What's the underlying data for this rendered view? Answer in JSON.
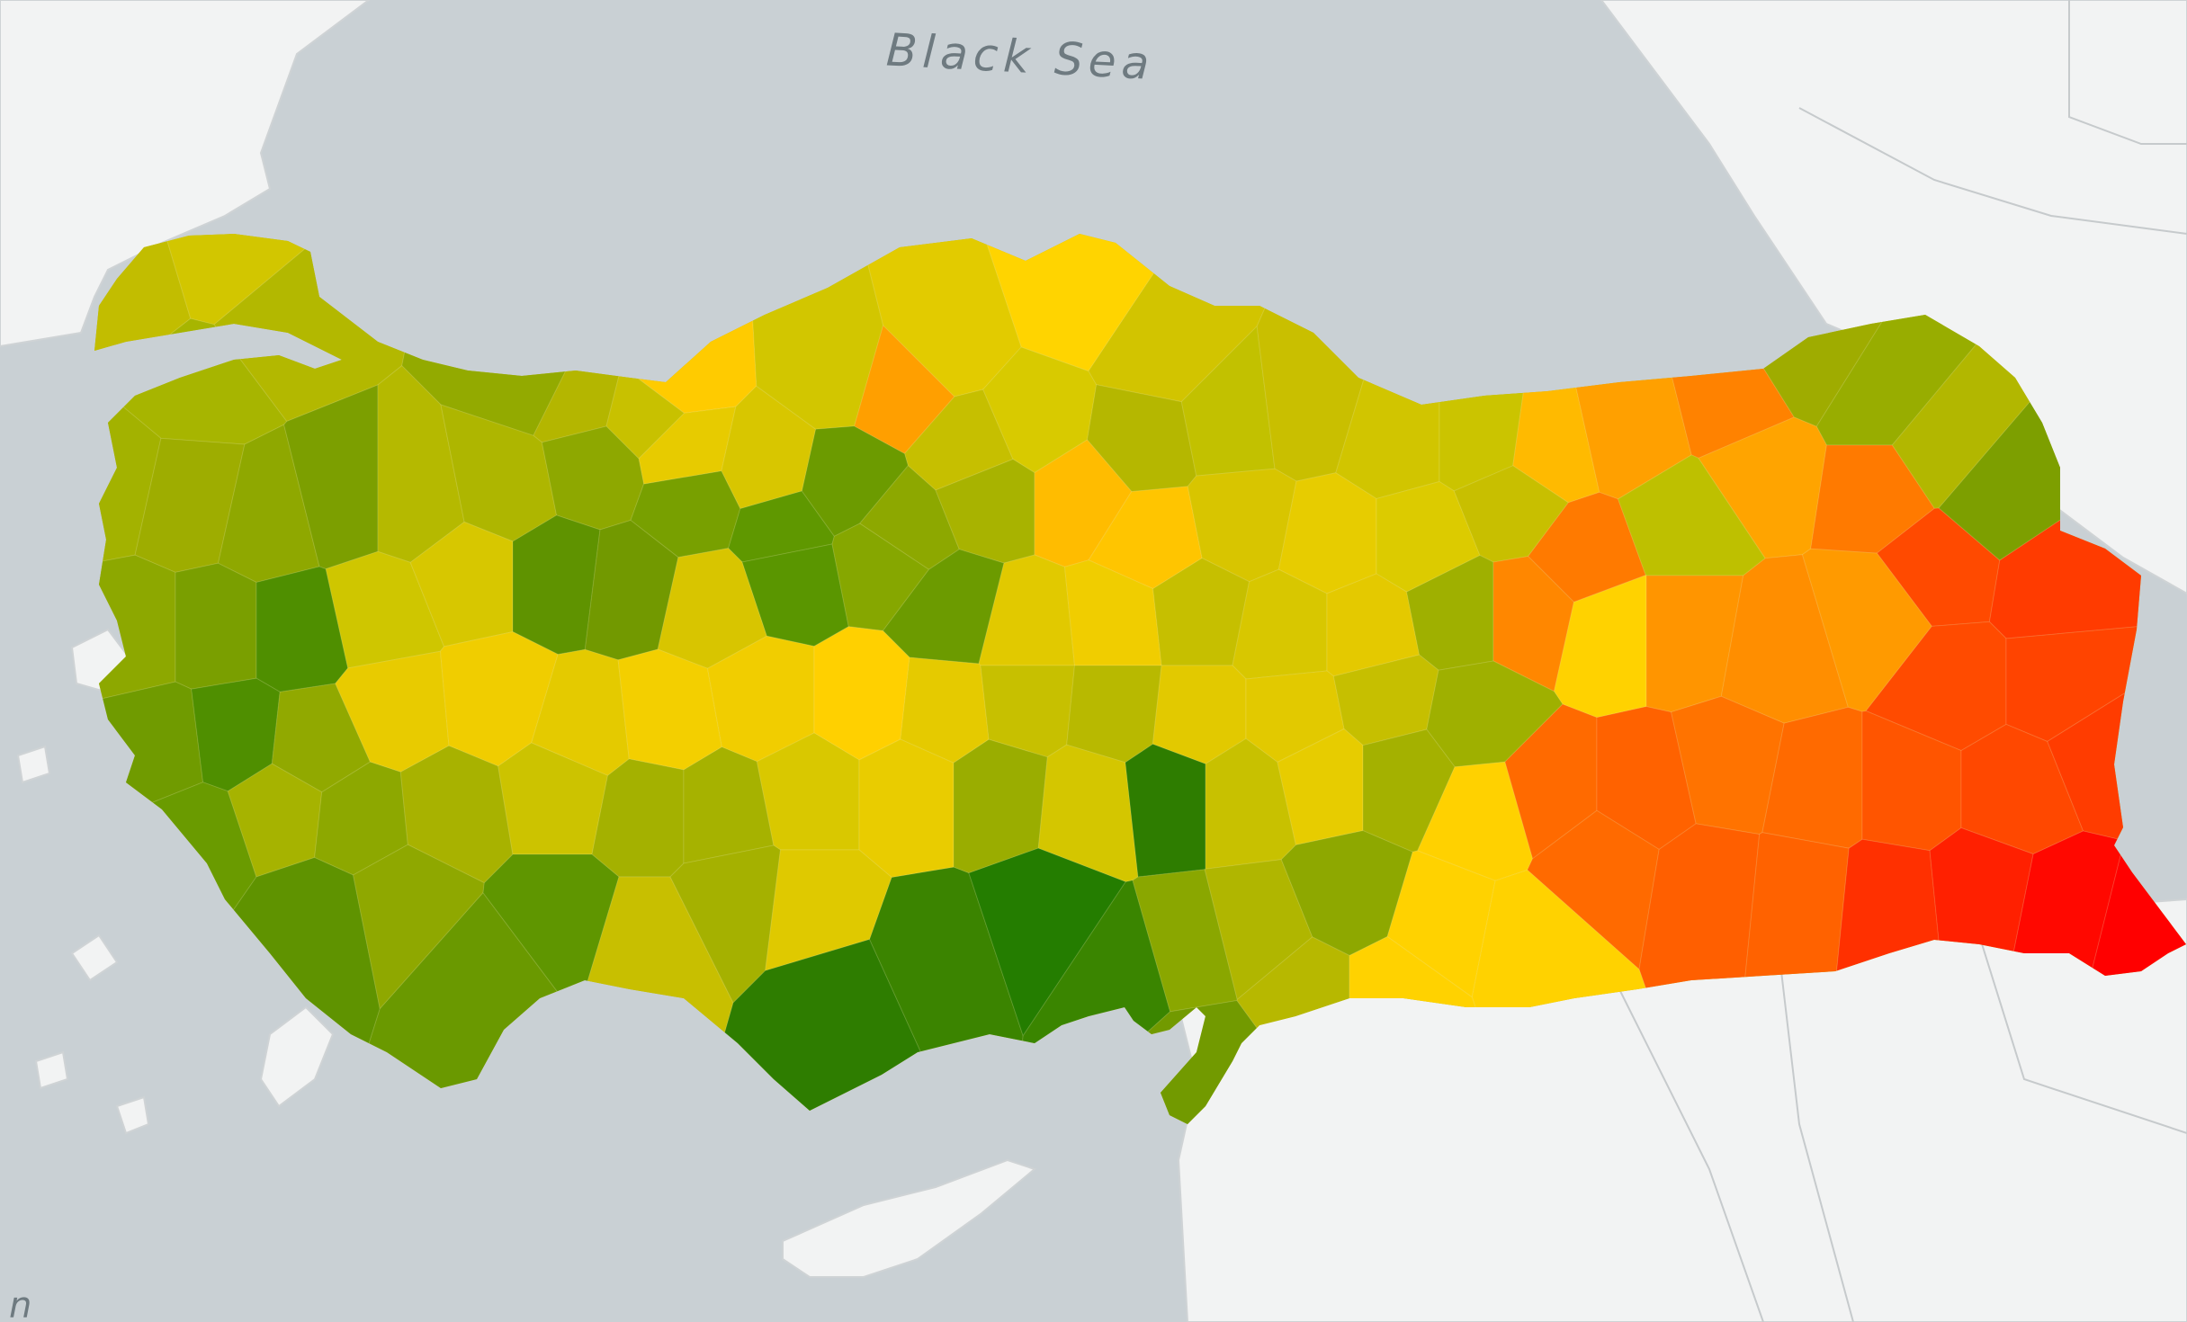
{
  "map": {
    "labels": {
      "black_sea": "Black Sea",
      "edge_label": "n"
    },
    "colors": {
      "sea": "#c9d0d4",
      "land_outside": "#f2f3f3",
      "scale_low_green": "#2e7d00",
      "scale_mid_yellow": "#f5d200",
      "scale_high_red": "#ff0000"
    }
  }
}
